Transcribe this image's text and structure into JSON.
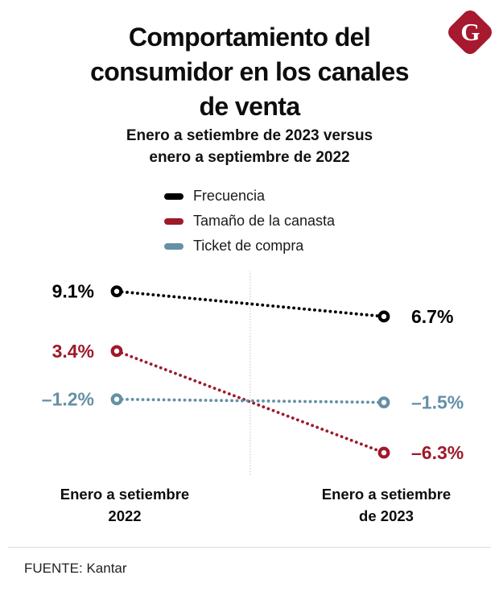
{
  "page": {
    "title_lines": [
      "Comportamiento del",
      "consumidor en los canales",
      "de venta"
    ],
    "subtitle_lines": [
      "Enero a setiembre de 2023 versus",
      "enero a septiembre de 2022"
    ],
    "source": "FUENTE: Kantar",
    "logo_letter": "G",
    "logo_color": "#a6192e"
  },
  "legend": [
    {
      "label": "Frecuencia",
      "color": "#000000"
    },
    {
      "label": "Tamaño de la canasta",
      "color": "#9e1a2b"
    },
    {
      "label": "Ticket de compra",
      "color": "#6590a6"
    }
  ],
  "chart_data": {
    "type": "line",
    "subtype": "slope",
    "title": "Comportamiento del consumidor en los canales de venta",
    "subtitle": "Enero a setiembre de 2023 versus enero a septiembre de 2022",
    "categories": [
      "Enero a setiembre 2022",
      "Enero a setiembre de 2023"
    ],
    "x_category_lines": [
      [
        "Enero a setiembre",
        "2022"
      ],
      [
        "Enero a setiembre",
        "de 2023"
      ]
    ],
    "series": [
      {
        "name": "Frecuencia",
        "color": "#000000",
        "values": [
          9.1,
          6.7
        ],
        "labels": [
          "9.1%",
          "6.7%"
        ]
      },
      {
        "name": "Tamaño de la canasta",
        "color": "#9e1a2b",
        "values": [
          3.4,
          -6.3
        ],
        "labels": [
          "3.4%",
          "–6.3%"
        ]
      },
      {
        "name": "Ticket de compra",
        "color": "#6590a6",
        "values": [
          -1.2,
          -1.5
        ],
        "labels": [
          "–1.2%",
          "–1.5%"
        ]
      }
    ],
    "ylim": [
      -8.6,
      11
    ],
    "unit": "%",
    "line_style": "dotted",
    "marker": "open-circle",
    "grid": false,
    "midline": true,
    "legend_position": "top-center",
    "source": "Kantar"
  }
}
